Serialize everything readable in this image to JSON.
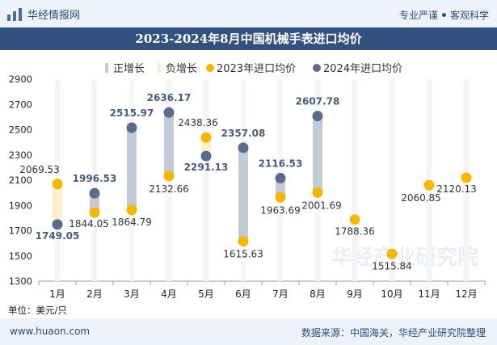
{
  "header": {
    "brand": "华经情报网",
    "tagline_left": "专业严谨",
    "tagline_right": "客观科学",
    "logo_icon": "bar-chart-logo-icon"
  },
  "title": "2023-2024年8月中国机械手表进口均价",
  "unit": "单位：美元/只",
  "footer": {
    "website": "www.huaon.com",
    "source": "数据来源：中国海关，华经产业研究院整理"
  },
  "watermark": "华经产业研究院",
  "chart_data": {
    "type": "line",
    "title": "2023-2024年8月中国机械手表进口均价",
    "xlabel": "",
    "ylabel": "",
    "categories": [
      "1月",
      "2月",
      "3月",
      "4月",
      "5月",
      "6月",
      "7月",
      "8月",
      "9月",
      "10月",
      "11月",
      "12月"
    ],
    "ylim": [
      1300,
      2900
    ],
    "yticks": [
      1300,
      1500,
      1700,
      1900,
      2100,
      2300,
      2500,
      2700,
      2900
    ],
    "grid": false,
    "legend_position": "top",
    "legend": [
      "正增长",
      "负增长",
      "2023年进口均价",
      "2024年进口均价"
    ],
    "series": [
      {
        "name": "2023年进口均价",
        "color": "#f5b800",
        "values": [
          2069.53,
          1844.05,
          1864.79,
          2132.66,
          2438.36,
          1615.63,
          1963.69,
          2001.69,
          1788.36,
          1515.84,
          2060.85,
          2120.13
        ]
      },
      {
        "name": "2024年进口均价",
        "color": "#5b6b8c",
        "values": [
          1749.05,
          1996.53,
          2515.97,
          2636.17,
          2291.13,
          2357.08,
          2116.53,
          2607.78,
          null,
          null,
          null,
          null
        ]
      }
    ],
    "bar_colors": {
      "positive": "#c3cad8",
      "negative": "#fbeec9"
    }
  }
}
